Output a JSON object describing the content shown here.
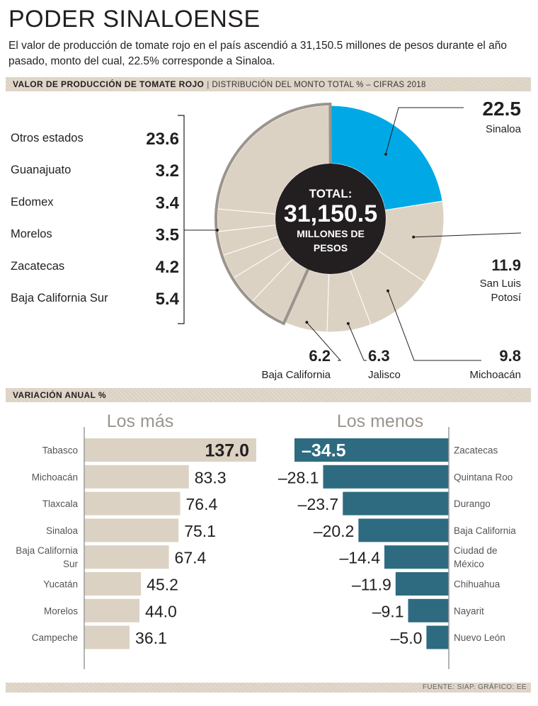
{
  "header": {
    "title": "PODER SINALOENSE",
    "subtitle": "El valor de producción de tomate rojo en el país ascendió a 31,150.5 millones de pesos durante el año pasado, monto del cual, 22.5% corresponde a Sinaloa."
  },
  "section1": {
    "label": "VALOR DE PRODUCCIÓN DE TOMATE ROJO",
    "separator": "|",
    "sublabel": "DISTRIBUCIÓN DEL MONTO TOTAL % – CIFRAS 2018"
  },
  "section2": {
    "label": "VARIACIÓN ANUAL %"
  },
  "source": "FUENTE: SIAP.  GRÁFICO: EE",
  "colors": {
    "highlight": "#00a9e6",
    "slice": "#dcd2c3",
    "slice_edge": "#ffffff",
    "center": "#231f20",
    "bar_pos": "#dcd2c3",
    "bar_neg": "#2e6b80",
    "axis": "#9a9a9a"
  },
  "chart_data": [
    {
      "type": "pie",
      "center_label": {
        "line1": "TOTAL:",
        "line2": "31,150.5",
        "line3": "MILLONES DE",
        "line4": "PESOS"
      },
      "slices": [
        {
          "name": "Sinaloa",
          "value": 22.5,
          "label": "22.5"
        },
        {
          "name": "San Luis Potosí",
          "value": 11.9,
          "label": "11.9"
        },
        {
          "name": "Michoacán",
          "value": 9.8,
          "label": "9.8"
        },
        {
          "name": "Jalisco",
          "value": 6.3,
          "label": "6.3"
        },
        {
          "name": "Baja California",
          "value": 6.2,
          "label": "6.2"
        },
        {
          "name": "Baja California Sur",
          "value": 5.4,
          "label": "5.4"
        },
        {
          "name": "Zacatecas",
          "value": 4.2,
          "label": "4.2"
        },
        {
          "name": "Morelos",
          "value": 3.5,
          "label": "3.5"
        },
        {
          "name": "Edomex",
          "value": 3.4,
          "label": "3.4"
        },
        {
          "name": "Guanajuato",
          "value": 3.2,
          "label": "3.2"
        },
        {
          "name": "Otros estados",
          "value": 23.6,
          "label": "23.6"
        }
      ],
      "callouts": {
        "sinaloa": {
          "value": "22.5",
          "name": "Sinaloa"
        },
        "slp": {
          "value": "11.9",
          "name_line1": "San Luis",
          "name_line2": "Potosí"
        },
        "michoacan": {
          "value": "9.8",
          "name": "Michoacán"
        },
        "jalisco": {
          "value": "6.3",
          "name": "Jalisco"
        },
        "bc": {
          "value": "6.2",
          "name": "Baja California"
        }
      },
      "left_list": [
        {
          "name": "Otros estados",
          "value": "23.6"
        },
        {
          "name": "Guanajuato",
          "value": "3.2"
        },
        {
          "name": "Edomex",
          "value": "3.4"
        },
        {
          "name": "Morelos",
          "value": "3.5"
        },
        {
          "name": "Zacatecas",
          "value": "4.2"
        },
        {
          "name": "Baja California Sur",
          "value": "5.4"
        }
      ]
    },
    {
      "type": "bar",
      "title": "Los más",
      "orientation": "horizontal",
      "categories": [
        "Tabasco",
        "Michoacán",
        "Tlaxcala",
        "Sinaloa",
        "Baja California Sur",
        "Yucatán",
        "Morelos",
        "Campeche"
      ],
      "category_lines": [
        [
          "Tabasco"
        ],
        [
          "Michoacán"
        ],
        [
          "Tlaxcala"
        ],
        [
          "Sinaloa"
        ],
        [
          "Baja California",
          "Sur"
        ],
        [
          "Yucatán"
        ],
        [
          "Morelos"
        ],
        [
          "Campeche"
        ]
      ],
      "values": [
        137.0,
        83.3,
        76.4,
        75.1,
        67.4,
        45.2,
        44.0,
        36.1
      ],
      "value_labels": [
        "137.0",
        "83.3",
        "76.4",
        "75.1",
        "67.4",
        "45.2",
        "44.0",
        "36.1"
      ],
      "xlim": [
        0,
        137.0
      ]
    },
    {
      "type": "bar",
      "title": "Los menos",
      "orientation": "horizontal",
      "categories": [
        "Zacatecas",
        "Quintana Roo",
        "Durango",
        "Baja California",
        "Ciudad de México",
        "Chihuahua",
        "Nayarit",
        "Nuevo León"
      ],
      "category_lines": [
        [
          "Zacatecas"
        ],
        [
          "Quintana Roo"
        ],
        [
          "Durango"
        ],
        [
          "Baja California"
        ],
        [
          "Ciudad de",
          "México"
        ],
        [
          "Chihuahua"
        ],
        [
          "Nayarit"
        ],
        [
          "Nuevo León"
        ]
      ],
      "values": [
        -34.5,
        -28.1,
        -23.7,
        -20.2,
        -14.4,
        -11.9,
        -9.1,
        -5.0
      ],
      "value_labels": [
        "–34.5",
        "–28.1",
        "–23.7",
        "–20.2",
        "–14.4",
        "–11.9",
        "–9.1",
        "–5.0"
      ],
      "xlim": [
        -34.5,
        0
      ]
    }
  ]
}
